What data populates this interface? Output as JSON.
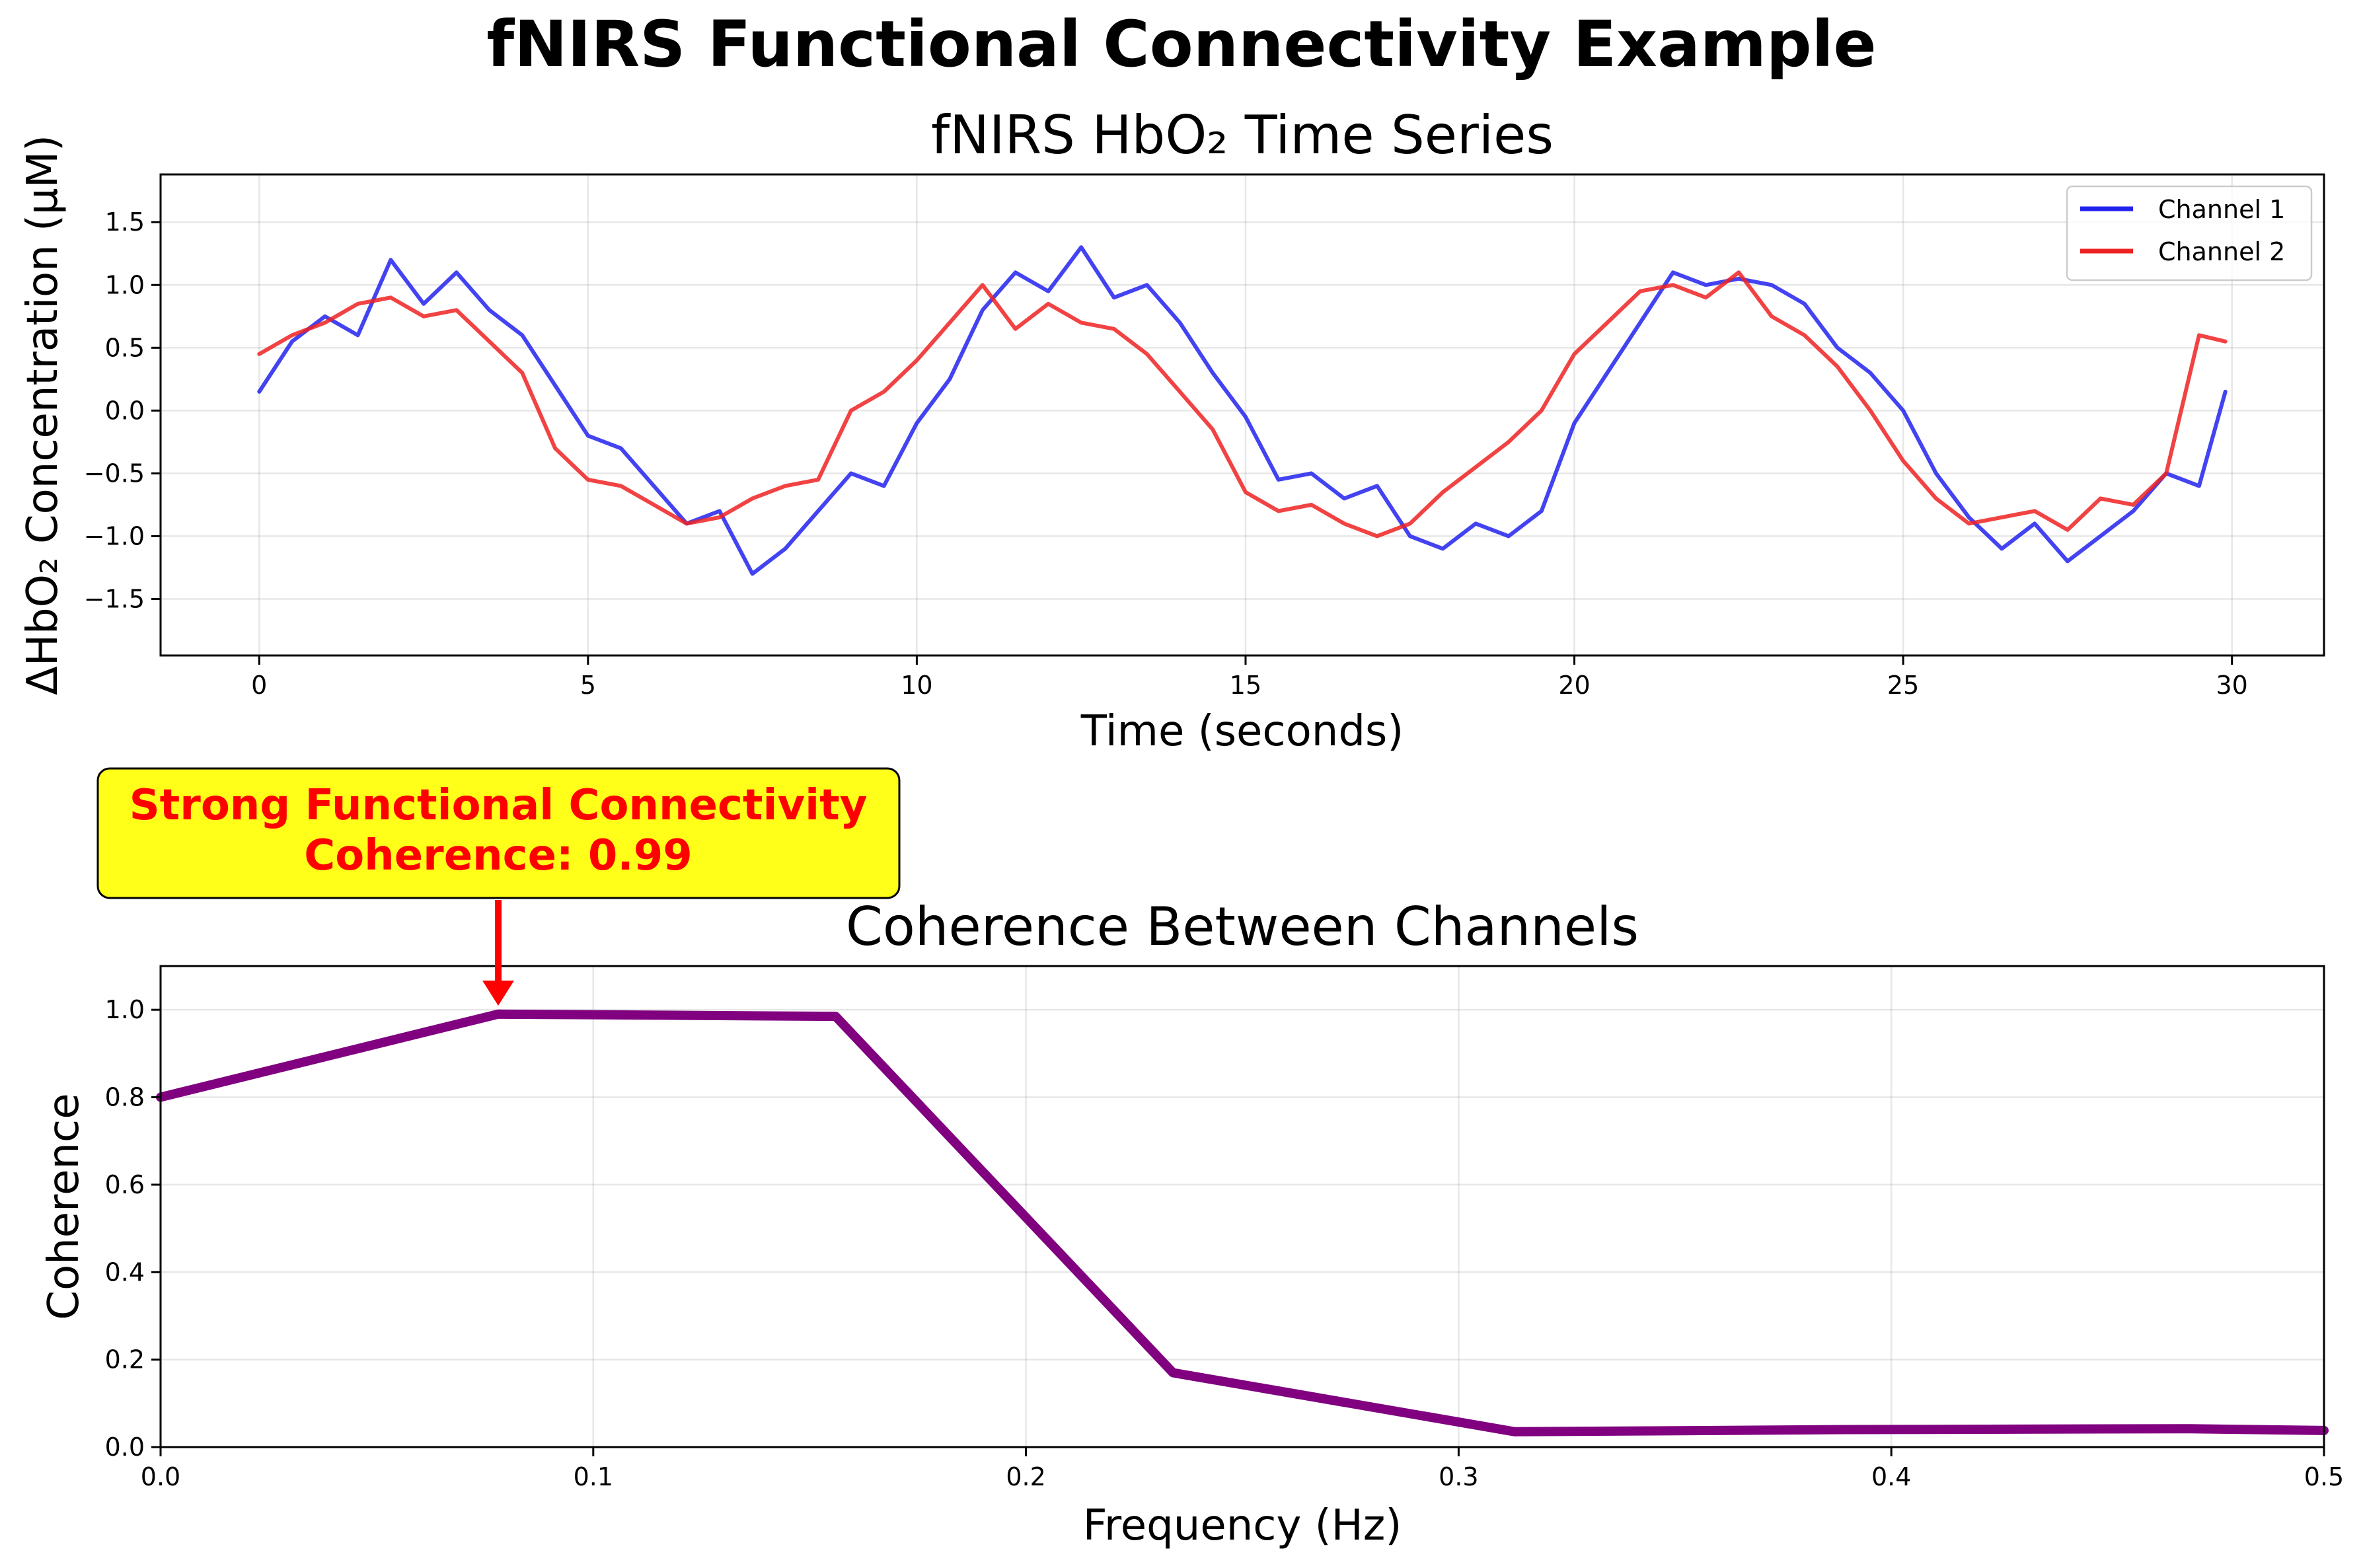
{
  "suptitle": "fNIRS Functional Connectivity Example",
  "chart_data": [
    {
      "type": "line",
      "title": "fNIRS HbO₂ Time Series",
      "xlabel": "Time (seconds)",
      "ylabel": "ΔHbO₂ Concentration (μM)",
      "xlim": [
        -1.5,
        31.4
      ],
      "ylim": [
        -1.95,
        1.88
      ],
      "xticks": [
        0,
        5,
        10,
        15,
        20,
        25,
        30
      ],
      "xtick_labels": [
        "0",
        "5",
        "10",
        "15",
        "20",
        "25",
        "30"
      ],
      "yticks": [
        -1.5,
        -1.0,
        -0.5,
        0.0,
        0.5,
        1.0,
        1.5
      ],
      "ytick_labels": [
        "−1.5",
        "−1.0",
        "−0.5",
        "0.0",
        "0.5",
        "1.0",
        "1.5"
      ],
      "grid": true,
      "legend": "top-right",
      "series": [
        {
          "name": "Channel 1",
          "color": "#2222ee",
          "x": [
            0,
            0.5,
            1,
            1.5,
            2,
            2.5,
            3,
            3.5,
            4,
            4.5,
            5,
            5.5,
            6,
            6.5,
            7,
            7.5,
            8,
            8.5,
            9,
            9.5,
            10,
            10.5,
            11,
            11.5,
            12,
            12.5,
            13,
            13.5,
            14,
            14.5,
            15,
            15.5,
            16,
            16.5,
            17,
            17.5,
            18,
            18.5,
            19,
            19.5,
            20,
            20.5,
            21,
            21.5,
            22,
            22.5,
            23,
            23.5,
            24,
            24.5,
            25,
            25.5,
            26,
            26.5,
            27,
            27.5,
            28,
            28.5,
            29,
            29.5,
            29.9
          ],
          "y": [
            0.15,
            0.55,
            0.75,
            0.6,
            1.2,
            0.85,
            1.1,
            0.8,
            0.6,
            0.2,
            -0.2,
            -0.3,
            -0.6,
            -0.9,
            -0.8,
            -1.3,
            -1.1,
            -0.8,
            -0.5,
            -0.6,
            -0.1,
            0.25,
            0.8,
            1.1,
            0.95,
            1.3,
            0.9,
            1.0,
            0.7,
            0.3,
            -0.05,
            -0.55,
            -0.5,
            -0.7,
            -0.6,
            -1.0,
            -1.1,
            -0.9,
            -1.0,
            -0.8,
            -0.1,
            0.3,
            0.7,
            1.1,
            1.0,
            1.05,
            1.0,
            0.85,
            0.5,
            0.3,
            0.0,
            -0.5,
            -0.85,
            -1.1,
            -0.9,
            -1.2,
            -1.0,
            -0.8,
            -0.5,
            -0.6,
            0.15
          ]
        },
        {
          "name": "Channel 2",
          "color": "#ee2222",
          "x": [
            0,
            0.5,
            1,
            1.5,
            2,
            2.5,
            3,
            3.5,
            4,
            4.5,
            5,
            5.5,
            6,
            6.5,
            7,
            7.5,
            8,
            8.5,
            9,
            9.5,
            10,
            10.5,
            11,
            11.5,
            12,
            12.5,
            13,
            13.5,
            14,
            14.5,
            15,
            15.5,
            16,
            16.5,
            17,
            17.5,
            18,
            18.5,
            19,
            19.5,
            20,
            20.5,
            21,
            21.5,
            22,
            22.5,
            23,
            23.5,
            24,
            24.5,
            25,
            25.5,
            26,
            26.5,
            27,
            27.5,
            28,
            28.5,
            29,
            29.5,
            29.9
          ],
          "y": [
            0.45,
            0.6,
            0.7,
            0.85,
            0.9,
            0.75,
            0.8,
            0.55,
            0.3,
            -0.3,
            -0.55,
            -0.6,
            -0.75,
            -0.9,
            -0.85,
            -0.7,
            -0.6,
            -0.55,
            0.0,
            0.15,
            0.4,
            0.7,
            1.0,
            0.65,
            0.85,
            0.7,
            0.65,
            0.45,
            0.15,
            -0.15,
            -0.65,
            -0.8,
            -0.75,
            -0.9,
            -1.0,
            -0.9,
            -0.65,
            -0.45,
            -0.25,
            0.0,
            0.45,
            0.7,
            0.95,
            1.0,
            0.9,
            1.1,
            0.75,
            0.6,
            0.35,
            0.0,
            -0.4,
            -0.7,
            -0.9,
            -0.85,
            -0.8,
            -0.95,
            -0.7,
            -0.75,
            -0.5,
            0.6,
            0.55
          ]
        }
      ]
    },
    {
      "type": "line",
      "title": "Coherence Between Channels",
      "xlabel": "Frequency (Hz)",
      "ylabel": "Coherence",
      "xlim": [
        0.0,
        0.5
      ],
      "ylim": [
        0.0,
        1.1
      ],
      "xticks": [
        0.0,
        0.1,
        0.2,
        0.3,
        0.4,
        0.5
      ],
      "xtick_labels": [
        "0.0",
        "0.1",
        "0.2",
        "0.3",
        "0.4",
        "0.5"
      ],
      "yticks": [
        0.0,
        0.2,
        0.4,
        0.6,
        0.8,
        1.0
      ],
      "ytick_labels": [
        "0.0",
        "0.2",
        "0.4",
        "0.6",
        "0.8",
        "1.0"
      ],
      "grid": true,
      "series": [
        {
          "color": "#800080",
          "x": [
            0.0,
            0.078,
            0.156,
            0.234,
            0.313,
            0.391,
            0.469,
            0.5
          ],
          "y": [
            0.8,
            0.99,
            0.985,
            0.17,
            0.035,
            0.04,
            0.042,
            0.038
          ]
        }
      ],
      "annotation": {
        "line1": "Strong Functional Connectivity",
        "line2": "Coherence: 0.99",
        "x": 0.078,
        "y": 0.99,
        "box_color": "#ffff1a",
        "text_color": "#ff0000",
        "arrow_color": "#ff0000"
      }
    }
  ]
}
